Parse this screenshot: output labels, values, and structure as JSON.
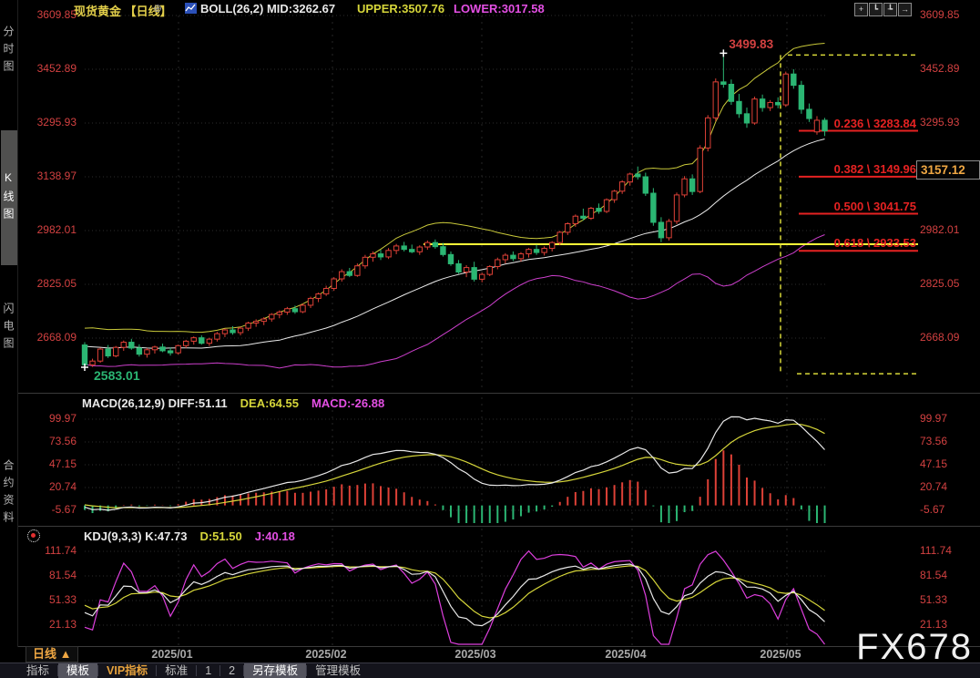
{
  "palette": {
    "up": "#de4137",
    "down": "#2bb673",
    "boll_upper": "#c9c93a",
    "boll_mid": "#e9e9e9",
    "boll_lower": "#cc3fcc",
    "axis_red": "#d34141",
    "fib_red": "#e62222",
    "support_yellow": "#ffff38",
    "fib_dash_yellow": "#d8d838",
    "diff_white": "#e9e9e9",
    "dea_yellow": "#d6d63a",
    "j_magenta": "#dd3fdd",
    "orange": "#efa743",
    "header_yellow": "#e3cf4a",
    "header_magenta": "#e44fe4"
  },
  "sidebar": {
    "tabs": [
      {
        "label": "分时图",
        "selected": false
      },
      {
        "label": "K线图",
        "selected": true
      },
      {
        "label": "闪电图",
        "selected": false
      },
      {
        "label": "合约资料",
        "selected": false
      }
    ]
  },
  "header": {
    "symbol_title": "现货黄金 【日线】",
    "expand_icon": "⊕",
    "boll_mid": "BOLL(26,2) MID:3262.67",
    "upper": "UPPER:3507.76",
    "lower": "LOWER:3017.58"
  },
  "toolbar": {
    "icons": [
      {
        "name": "crosshair-icon",
        "glyph": "+"
      },
      {
        "name": "axis-scale-icon",
        "glyph": "┗"
      },
      {
        "name": "axis-zoom-icon",
        "glyph": "┺"
      },
      {
        "name": "shift-right-icon",
        "glyph": "→"
      }
    ]
  },
  "main_panel": {
    "axis_values": [
      3609.85,
      3452.89,
      3295.93,
      3138.97,
      2982.01,
      2825.05,
      2668.09
    ],
    "axis_values_right": [
      3609.85,
      3452.89,
      3295.93,
      2982.01,
      2825.05,
      2668.09
    ],
    "price_box": {
      "value": "3157.12",
      "price": 3157.12
    },
    "high_annotation": {
      "price": 3499.83,
      "label": "3499.83"
    },
    "low_annotation": {
      "price": 2583.01,
      "label": "2583.01"
    },
    "support_line_price": 2942,
    "fib_box": {
      "top_price": 3499.83,
      "bottom_price": 2564
    },
    "fib_levels": [
      {
        "ratio": "0.236",
        "price": 3283.84,
        "label": "0.236 \\ 3283.84"
      },
      {
        "ratio": "0.382",
        "price": 3149.96,
        "label": "0.382 \\ 3149.96"
      },
      {
        "ratio": "0.500",
        "price": 3041.75,
        "label": "0.500 \\ 3041.75"
      },
      {
        "ratio": "0.618",
        "price": 2933.53,
        "label": "0.618 \\ 2933.53"
      }
    ]
  },
  "macd_panel": {
    "header": {
      "title_diff": "MACD(26,12,9) DIFF:51.11",
      "dea": "DEA:64.55",
      "macd": "MACD:-26.88"
    },
    "axis_values": [
      99.97,
      73.56,
      47.15,
      20.74,
      -5.67
    ]
  },
  "kdj_panel": {
    "header": {
      "title_k": "KDJ(9,3,3) K:47.73",
      "d": "D:51.50",
      "j": "J:40.18"
    },
    "axis_values": [
      111.74,
      81.54,
      51.33,
      21.13
    ]
  },
  "xaxis": {
    "period_label": "日线 ▲",
    "months": [
      "2025/01",
      "2025/02",
      "2025/03",
      "2025/04",
      "2025/05"
    ]
  },
  "bottom_tabs": {
    "items": [
      {
        "label": "指标",
        "selected": false,
        "vip": false
      },
      {
        "label": "模板",
        "selected": true,
        "vip": false
      },
      {
        "label": "VIP指标",
        "selected": false,
        "vip": true
      },
      {
        "label": "标准",
        "selected": false,
        "vip": false
      },
      {
        "label": "1",
        "selected": false,
        "vip": false
      },
      {
        "label": "2",
        "selected": false,
        "vip": false
      },
      {
        "label": "另存模板",
        "selected": true,
        "vip": false
      },
      {
        "label": "管理模板",
        "selected": false,
        "vip": false
      }
    ]
  },
  "watermark": "FX678",
  "chart_data": {
    "type": "candlestick",
    "symbol": "现货黄金",
    "period": "日线",
    "x_labels": [
      "2025/01",
      "2025/02",
      "2025/03",
      "2025/04",
      "2025/05"
    ],
    "indicators": {
      "boll": "BOLL(26,2)",
      "macd": "MACD(26,12,9)",
      "kdj": "KDJ(9,3,3)"
    },
    "high": 3499.83,
    "low": 2583.01,
    "candles": [
      [
        2648,
        2656,
        2583,
        2590
      ],
      [
        2590,
        2608,
        2584,
        2601
      ],
      [
        2601,
        2640,
        2596,
        2636
      ],
      [
        2636,
        2648,
        2610,
        2616
      ],
      [
        2616,
        2645,
        2612,
        2641
      ],
      [
        2641,
        2661,
        2631,
        2656
      ],
      [
        2656,
        2666,
        2634,
        2639
      ],
      [
        2639,
        2650,
        2614,
        2621
      ],
      [
        2621,
        2639,
        2611,
        2634
      ],
      [
        2634,
        2646,
        2623,
        2642
      ],
      [
        2642,
        2652,
        2627,
        2631
      ],
      [
        2631,
        2641,
        2617,
        2625
      ],
      [
        2625,
        2649,
        2620,
        2646
      ],
      [
        2646,
        2663,
        2639,
        2659
      ],
      [
        2659,
        2673,
        2649,
        2669
      ],
      [
        2669,
        2676,
        2649,
        2653
      ],
      [
        2653,
        2669,
        2645,
        2665
      ],
      [
        2665,
        2686,
        2658,
        2681
      ],
      [
        2681,
        2696,
        2671,
        2692
      ],
      [
        2692,
        2703,
        2678,
        2684
      ],
      [
        2684,
        2701,
        2676,
        2697
      ],
      [
        2697,
        2716,
        2689,
        2712
      ],
      [
        2712,
        2723,
        2701,
        2717
      ],
      [
        2717,
        2729,
        2706,
        2724
      ],
      [
        2724,
        2741,
        2716,
        2737
      ],
      [
        2737,
        2749,
        2726,
        2744
      ],
      [
        2744,
        2759,
        2736,
        2754
      ],
      [
        2754,
        2763,
        2739,
        2745
      ],
      [
        2745,
        2769,
        2741,
        2764
      ],
      [
        2764,
        2789,
        2756,
        2784
      ],
      [
        2784,
        2801,
        2773,
        2797
      ],
      [
        2797,
        2821,
        2791,
        2813
      ],
      [
        2813,
        2846,
        2806,
        2841
      ],
      [
        2841,
        2869,
        2833,
        2862
      ],
      [
        2862,
        2873,
        2846,
        2851
      ],
      [
        2851,
        2886,
        2847,
        2879
      ],
      [
        2879,
        2911,
        2871,
        2904
      ],
      [
        2904,
        2921,
        2891,
        2914
      ],
      [
        2914,
        2926,
        2896,
        2905
      ],
      [
        2905,
        2931,
        2899,
        2924
      ],
      [
        2924,
        2943,
        2913,
        2937
      ],
      [
        2937,
        2949,
        2921,
        2927
      ],
      [
        2927,
        2941,
        2916,
        2920
      ],
      [
        2920,
        2939,
        2911,
        2934
      ],
      [
        2934,
        2953,
        2926,
        2947
      ],
      [
        2947,
        2956,
        2929,
        2935
      ],
      [
        2935,
        2946,
        2906,
        2912
      ],
      [
        2912,
        2921,
        2879,
        2885
      ],
      [
        2885,
        2896,
        2856,
        2861
      ],
      [
        2861,
        2881,
        2846,
        2874
      ],
      [
        2874,
        2891,
        2833,
        2840
      ],
      [
        2840,
        2859,
        2831,
        2854
      ],
      [
        2854,
        2881,
        2849,
        2877
      ],
      [
        2877,
        2903,
        2869,
        2897
      ],
      [
        2897,
        2916,
        2886,
        2910
      ],
      [
        2910,
        2921,
        2893,
        2900
      ],
      [
        2900,
        2919,
        2891,
        2914
      ],
      [
        2914,
        2931,
        2903,
        2927
      ],
      [
        2927,
        2941,
        2911,
        2918
      ],
      [
        2918,
        2936,
        2909,
        2930
      ],
      [
        2930,
        2951,
        2921,
        2947
      ],
      [
        2947,
        2981,
        2939,
        2977
      ],
      [
        2977,
        3006,
        2969,
        3002
      ],
      [
        3002,
        3029,
        2993,
        3024
      ],
      [
        3024,
        3046,
        3011,
        3018
      ],
      [
        3018,
        3051,
        3013,
        3047
      ],
      [
        3047,
        3061,
        3031,
        3038
      ],
      [
        3038,
        3076,
        3033,
        3072
      ],
      [
        3072,
        3101,
        3063,
        3097
      ],
      [
        3097,
        3129,
        3089,
        3124
      ],
      [
        3124,
        3151,
        3113,
        3147
      ],
      [
        3147,
        3169,
        3131,
        3139
      ],
      [
        3139,
        3151,
        3083,
        3091
      ],
      [
        3091,
        3106,
        2996,
        3006
      ],
      [
        3006,
        3021,
        2948,
        2961
      ],
      [
        2961,
        3016,
        2953,
        3009
      ],
      [
        3009,
        3093,
        3001,
        3086
      ],
      [
        3086,
        3141,
        3079,
        3133
      ],
      [
        3133,
        3146,
        3086,
        3096
      ],
      [
        3096,
        3231,
        3091,
        3223
      ],
      [
        3223,
        3319,
        3213,
        3311
      ],
      [
        3311,
        3426,
        3301,
        3416
      ],
      [
        3416,
        3499.83,
        3399,
        3409
      ],
      [
        3409,
        3423,
        3349,
        3359
      ],
      [
        3359,
        3381,
        3311,
        3323
      ],
      [
        3323,
        3341,
        3282,
        3296
      ],
      [
        3296,
        3373,
        3291,
        3366
      ],
      [
        3366,
        3379,
        3329,
        3341
      ],
      [
        3341,
        3363,
        3331,
        3356
      ],
      [
        3356,
        3371,
        3339,
        3349
      ],
      [
        3349,
        3446,
        3343,
        3439
      ],
      [
        3439,
        3453,
        3396,
        3406
      ],
      [
        3406,
        3419,
        3323,
        3336
      ],
      [
        3336,
        3353,
        3299,
        3309
      ],
      [
        3270,
        3316,
        3262,
        3304
      ],
      [
        3304,
        3311,
        3258,
        3273
      ]
    ]
  }
}
